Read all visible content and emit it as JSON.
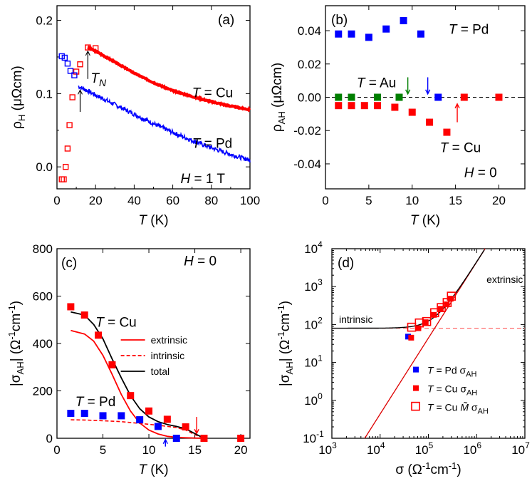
{
  "chart_data": [
    {
      "panel": "(a)",
      "type": "scatter",
      "xlabel": "T (K)",
      "xlabel_var": "T",
      "xlabel_unit": " (K)",
      "ylabel": "ρH (μΩcm)",
      "xlim": [
        0,
        100
      ],
      "ylim": [
        -0.03,
        0.22
      ],
      "xticks": [
        0,
        20,
        40,
        60,
        80,
        100
      ],
      "yticks": [
        0.0,
        0.1,
        0.2
      ],
      "ytick_labels": [
        "0.0",
        "0.1",
        "0.2"
      ],
      "annotations": {
        "TN": "N",
        "cu": "T = Cu",
        "pd": "T = Pd",
        "h": "H = 1 T"
      },
      "series": [
        {
          "name": "T = Cu",
          "color": "#ff0000",
          "open_points": [
            [
              2.5,
              -0.017
            ],
            [
              3.5,
              -0.017
            ],
            [
              4.5,
              0.0
            ],
            [
              5.5,
              0.025
            ],
            [
              6.5,
              0.057
            ],
            [
              8,
              0.095
            ],
            [
              10,
              0.13
            ],
            [
              12,
              0.14
            ],
            [
              16,
              0.163
            ],
            [
              20,
              0.162
            ]
          ],
          "curve": [
            [
              16,
              0.163
            ],
            [
              20,
              0.158
            ],
            [
              30,
              0.143
            ],
            [
              40,
              0.128
            ],
            [
              50,
              0.115
            ],
            [
              60,
              0.104
            ],
            [
              70,
              0.096
            ],
            [
              80,
              0.089
            ],
            [
              90,
              0.083
            ],
            [
              100,
              0.078
            ]
          ]
        },
        {
          "name": "T = Pd",
          "color": "#0000ff",
          "open_points": [
            [
              2.5,
              0.151
            ],
            [
              4,
              0.149
            ],
            [
              5.5,
              0.141
            ],
            [
              7,
              0.131
            ],
            [
              9,
              0.125
            ]
          ],
          "curve": [
            [
              11,
              0.11
            ],
            [
              15,
              0.105
            ],
            [
              20,
              0.098
            ],
            [
              30,
              0.085
            ],
            [
              40,
              0.072
            ],
            [
              50,
              0.059
            ],
            [
              60,
              0.047
            ],
            [
              70,
              0.036
            ],
            [
              80,
              0.026
            ],
            [
              90,
              0.017
            ],
            [
              100,
              0.009
            ]
          ]
        }
      ]
    },
    {
      "panel": "(b)",
      "type": "scatter",
      "xlabel": "T (K)",
      "xlabel_var": "T",
      "xlabel_unit": " (K)",
      "ylabel": "ρAH (μΩcm)",
      "xlim": [
        0,
        23
      ],
      "ylim": [
        -0.055,
        0.055
      ],
      "xticks": [
        0,
        5,
        10,
        15,
        20
      ],
      "yticks": [
        -0.04,
        -0.02,
        0.0,
        0.02,
        0.04
      ],
      "ytick_labels": [
        "-0.04",
        "-0.02",
        "0.00",
        "0.02",
        "0.04"
      ],
      "annotations": {
        "pd": "T = Pd",
        "au": "T = Au",
        "cu": "T = Cu",
        "h": "H = 0"
      },
      "series": [
        {
          "name": "T = Pd",
          "color": "#0000ff",
          "x": [
            1.5,
            3,
            5,
            7,
            9,
            11,
            13
          ],
          "y": [
            0.038,
            0.038,
            0.036,
            0.041,
            0.046,
            0.038,
            0.0
          ]
        },
        {
          "name": "T = Au",
          "color": "#007f00",
          "x": [
            1.5,
            3,
            6,
            8.5
          ],
          "y": [
            0.0,
            0.0,
            0.0,
            0.0
          ]
        },
        {
          "name": "T = Cu",
          "color": "#ff0000",
          "x": [
            1.5,
            3,
            4.5,
            6,
            8,
            10,
            12,
            14,
            16,
            20
          ],
          "y": [
            -0.005,
            -0.005,
            -0.005,
            -0.005,
            -0.006,
            -0.009,
            -0.015,
            -0.021,
            0.0,
            0.0
          ]
        }
      ]
    },
    {
      "panel": "(c)",
      "type": "line",
      "xlabel": "T (K)",
      "xlabel_var": "T",
      "xlabel_unit": " (K)",
      "ylabel": "|σAH| (Ω-1cm-1)",
      "xlim": [
        0,
        21
      ],
      "ylim": [
        0,
        800
      ],
      "xticks": [
        0,
        5,
        10,
        15,
        20
      ],
      "yticks": [
        0,
        200,
        400,
        600,
        800
      ],
      "annotations": {
        "cu": "T = Cu",
        "pd": "T = Pd",
        "h": "H = 0"
      },
      "legend": [
        "extrinsic",
        "intrinsic",
        "total"
      ],
      "series": [
        {
          "name": "T = Cu",
          "color": "#ff0000",
          "x": [
            1.5,
            3,
            4.5,
            6,
            8,
            10,
            12,
            14,
            16,
            20
          ],
          "y": [
            555,
            520,
            435,
            310,
            180,
            115,
            80,
            48,
            0,
            0
          ]
        },
        {
          "name": "T = Pd",
          "color": "#0000ff",
          "x": [
            1.5,
            3,
            5,
            7,
            9,
            11,
            13
          ],
          "y": [
            105,
            105,
            95,
            95,
            78,
            50,
            0
          ]
        },
        {
          "name": "extrinsic",
          "color": "#ff0000",
          "x": [
            1.5,
            3,
            4,
            5,
            6,
            7,
            8,
            9,
            10,
            11,
            12,
            13,
            14,
            15,
            16
          ],
          "y": [
            455,
            440,
            410,
            350,
            270,
            185,
            115,
            65,
            35,
            18,
            8,
            4,
            2,
            1,
            0
          ]
        },
        {
          "name": "intrinsic",
          "color": "#ff0000",
          "x": [
            1.5,
            3,
            5,
            7,
            9,
            11,
            13,
            14,
            15,
            16
          ],
          "y": [
            78,
            77,
            74,
            70,
            63,
            55,
            45,
            35,
            15,
            0
          ]
        },
        {
          "name": "total",
          "color": "#000000",
          "x": [
            1.5,
            3,
            4,
            5,
            6,
            7,
            8,
            9,
            10,
            11,
            12,
            13,
            14,
            15,
            16
          ],
          "y": [
            533,
            520,
            480,
            420,
            335,
            255,
            180,
            125,
            90,
            70,
            58,
            50,
            40,
            20,
            0
          ]
        }
      ]
    },
    {
      "panel": "(d)",
      "type": "scatter",
      "scale": "log-log",
      "xlabel": "σ (Ω-1cm-1)",
      "ylabel": "|σAH| (Ω-1cm-1)",
      "xlim": [
        1000,
        10000000
      ],
      "ylim": [
        0.1,
        10000
      ],
      "xticks": [
        1000,
        10000,
        100000,
        1000000,
        10000000
      ],
      "yticks": [
        0.1,
        1,
        10,
        100,
        1000,
        10000
      ],
      "xtick_exps": [
        "3",
        "4",
        "5",
        "6",
        "7"
      ],
      "ytick_exps": [
        "-1",
        "0",
        "1",
        "2",
        "3",
        "4"
      ],
      "annotations": {
        "intrinsic": "intrinsic",
        "extrinsic": "extrinsic"
      },
      "legend": [
        {
          "label": "T = Pd",
          "sym": "σAH",
          "color": "#0000ff",
          "marker": "filled"
        },
        {
          "label": "T = Cu",
          "sym": "σAH",
          "color": "#ff0000",
          "marker": "filled"
        },
        {
          "label": "T = Cu",
          "sym": "M̃ σAH",
          "color": "#ff0000",
          "marker": "open"
        }
      ],
      "series": [
        {
          "name": "T = Pd σAH",
          "color": "#0000ff",
          "x": [
            38000
          ],
          "y": [
            48
          ]
        },
        {
          "name": "T = Cu σAH",
          "color": "#ff0000",
          "x": [
            44000,
            62000,
            88000,
            130000,
            180000,
            240000,
            290000
          ],
          "y": [
            45,
            80,
            115,
            180,
            260,
            340,
            480
          ]
        },
        {
          "name": "T = Cu M̃ σAH",
          "color": "#ff0000",
          "x": [
            45000,
            65000,
            92000,
            135000,
            185000,
            245000,
            300000
          ],
          "y": [
            85,
            110,
            120,
            205,
            280,
            380,
            560
          ]
        }
      ],
      "lines": {
        "intrinsic_level": 80,
        "extrinsic": {
          "x1": 4800,
          "y1": 0.1,
          "x2": 1500000,
          "y2": 10000
        }
      }
    }
  ]
}
